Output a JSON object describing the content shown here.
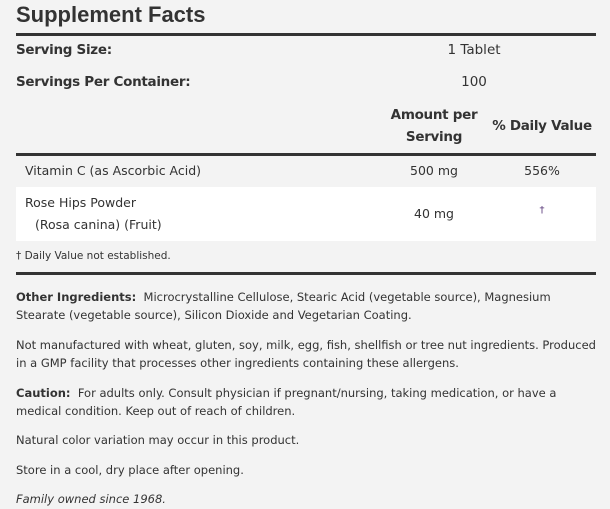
{
  "title": "Supplement Facts",
  "serving_size": {
    "label": "Serving Size:",
    "value": "1 Tablet"
  },
  "servings_per_container": {
    "label": "Servings Per Container:",
    "value": "100"
  },
  "columns": {
    "amount_line1": "Amount per",
    "amount_line2": "Serving",
    "daily_value": "% Daily Value"
  },
  "rows": [
    {
      "name": "Vitamin C (as Ascorbic Acid)",
      "amount": "500 mg",
      "dv": "556%"
    },
    {
      "name": "Rose Hips Powder",
      "sub": "(Rosa canina) (Fruit)",
      "amount": "40 mg",
      "dv": "†"
    }
  ],
  "footnote": "† Daily Value not established.",
  "other_ingredients": {
    "label": "Other Ingredients:",
    "text": "Microcrystalline Cellulose, Stearic Acid (vegetable source), Magnesium Stearate (vegetable source), Silicon Dioxide and Vegetarian Coating."
  },
  "allergen": "Not manufactured with wheat, gluten, soy, milk, egg, fish, shellfish or tree nut ingredients. Produced in a GMP facility that processes other ingredients containing these allergens.",
  "caution": {
    "label": "Caution:",
    "text": "For adults only. Consult physician if pregnant/nursing, taking medication, or have a medical condition. Keep out of reach of children."
  },
  "color_note": "Natural color variation may occur in this product.",
  "storage": "Store in a cool, dry place after opening.",
  "family": "Family owned since 1968."
}
